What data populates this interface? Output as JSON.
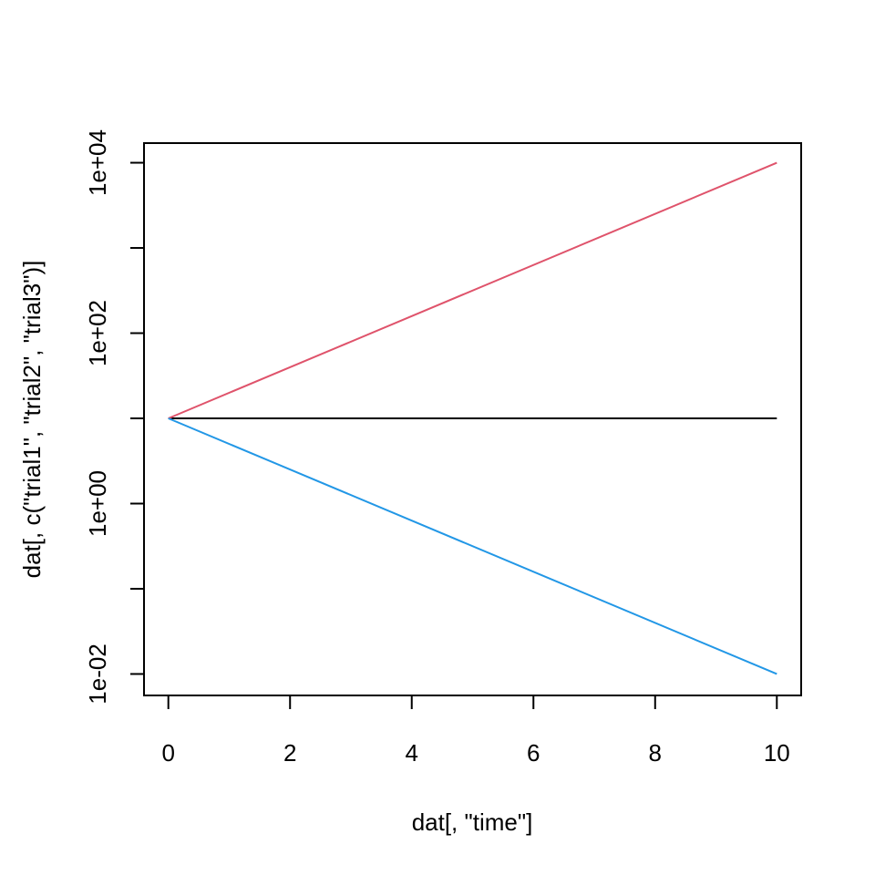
{
  "chart_data": {
    "type": "line",
    "xlabel": "dat[, \"time\"]",
    "ylabel": "dat[, c(\"trial1\", \"trial2\", \"trial3\")]",
    "y_scale": "log10",
    "xlim": [
      -0.4,
      10.4
    ],
    "ylim": [
      0.0056,
      17000
    ],
    "grid": false,
    "legend": "none",
    "x_ticks": [
      0,
      2,
      4,
      6,
      8,
      10
    ],
    "x_tick_labels": [
      "0",
      "2",
      "4",
      "6",
      "8",
      "10"
    ],
    "y_ticks": [
      0.01,
      0.1,
      1,
      10,
      100,
      1000,
      10000
    ],
    "y_tick_labels": [
      "1e-02",
      "",
      "1e+00",
      "",
      "1e+02",
      "",
      "1e+04"
    ],
    "series": [
      {
        "x": [
          0,
          10
        ],
        "values": [
          10,
          10
        ],
        "color": "#000000"
      },
      {
        "x": [
          0,
          10
        ],
        "values": [
          10,
          10000
        ],
        "color": "#DF536B"
      },
      {
        "x": [
          0,
          10
        ],
        "values": [
          10,
          0.01
        ],
        "color": "#2297E6"
      }
    ]
  }
}
